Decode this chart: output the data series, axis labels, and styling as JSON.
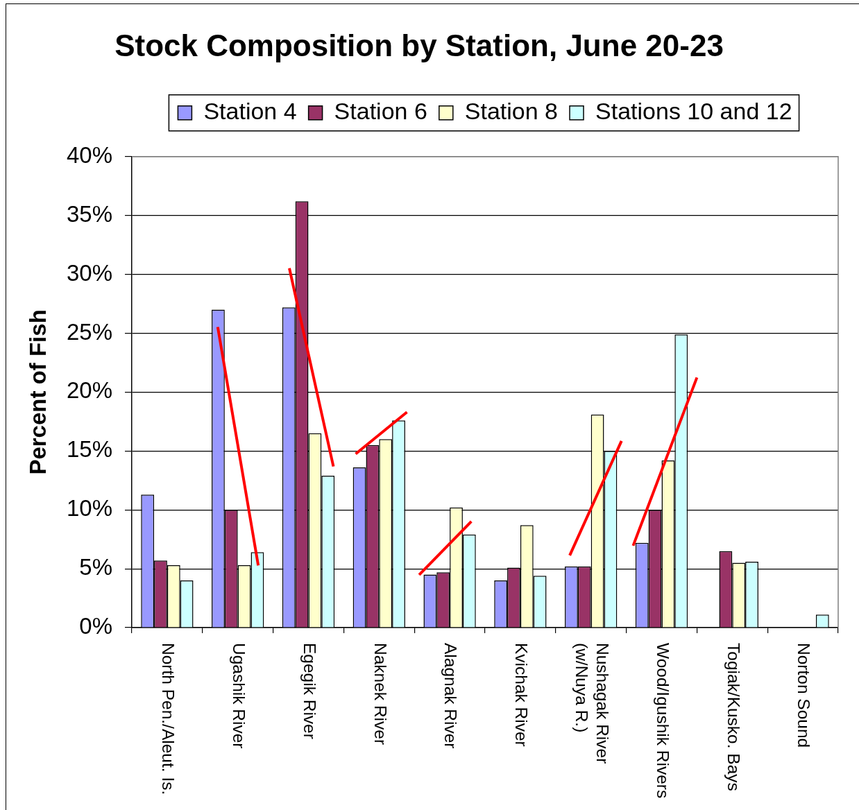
{
  "chart_data": {
    "type": "bar",
    "title": "Stock Composition by Station, June 20-23",
    "ylabel": "Percent of Fish",
    "categories": [
      "North Pen./Aleut. Is.",
      "Ugashik River",
      "Egegik River",
      "Naknek River",
      "Alagnak River",
      "Kvichak River",
      "Nushagak River (w/Nuya R.)",
      "Wood/Igushik Rivers",
      "Togiak/Kusko. Bays",
      "Norton Sound"
    ],
    "series": [
      {
        "name": "Station 4",
        "color": "#9999ff",
        "values": [
          11.3,
          27.0,
          27.2,
          13.6,
          4.5,
          4.0,
          5.2,
          7.2,
          null,
          null
        ]
      },
      {
        "name": "Station 6",
        "color": "#993366",
        "values": [
          5.7,
          10.0,
          36.2,
          15.5,
          4.7,
          5.1,
          5.2,
          10.0,
          6.5,
          null
        ]
      },
      {
        "name": "Station 8",
        "color": "#ffffcc",
        "values": [
          5.3,
          5.3,
          16.5,
          16.0,
          10.2,
          8.7,
          18.1,
          14.2,
          5.5,
          null
        ]
      },
      {
        "name": "Stations 10 and 12",
        "color": "#ccffff",
        "values": [
          4.0,
          6.4,
          12.9,
          17.6,
          7.9,
          4.4,
          15.0,
          24.9,
          5.6,
          1.1
        ]
      }
    ],
    "ylim": [
      0,
      40
    ],
    "yticks": [
      {
        "value": 0,
        "label": "0%"
      },
      {
        "value": 5,
        "label": "5%"
      },
      {
        "value": 10,
        "label": "10%"
      },
      {
        "value": 15,
        "label": "15%"
      },
      {
        "value": 20,
        "label": "20%"
      },
      {
        "value": 25,
        "label": "25%"
      },
      {
        "value": 30,
        "label": "30%"
      },
      {
        "value": 35,
        "label": "35%"
      },
      {
        "value": 40,
        "label": "40%"
      }
    ],
    "grid": "y",
    "legend": "top"
  }
}
